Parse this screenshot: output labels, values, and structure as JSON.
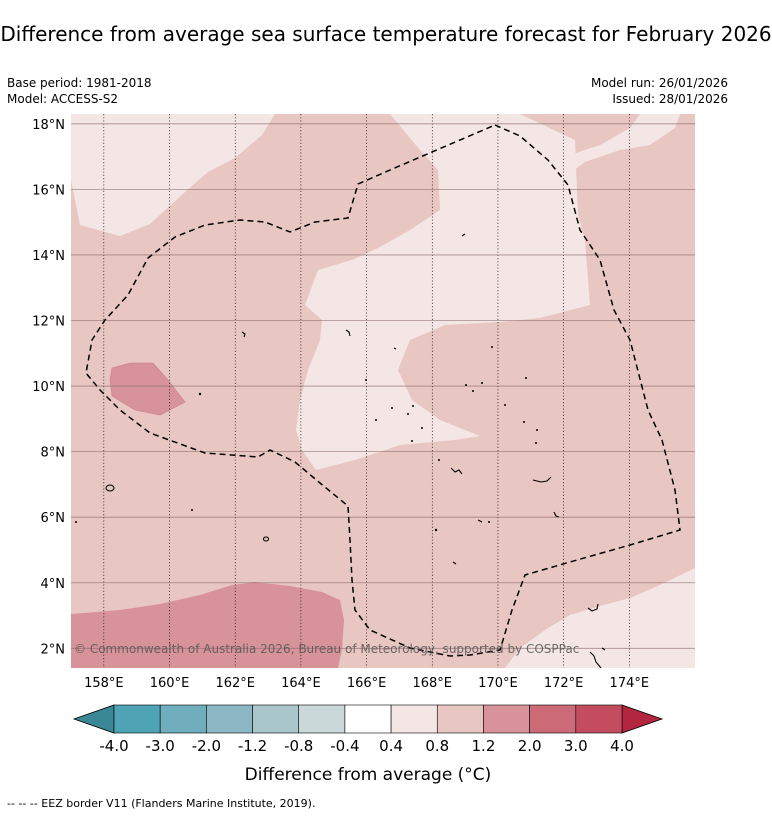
{
  "title": "Difference from average sea surface temperature forecast for February 2026",
  "meta": {
    "base_period": "Base period: 1981-2018",
    "model": "Model: ACCESS-S2",
    "model_run": "Model run: 26/01/2026",
    "issued": "Issued: 28/01/2026"
  },
  "map": {
    "lon_range": [
      157,
      176
    ],
    "lat_range": [
      1.4,
      18.3
    ],
    "lon_ticks": [
      "158°E",
      "160°E",
      "162°E",
      "164°E",
      "166°E",
      "168°E",
      "170°E",
      "172°E",
      "174°E"
    ],
    "lat_ticks": [
      "2°N",
      "4°N",
      "6°N",
      "8°N",
      "10°N",
      "12°N",
      "14°N",
      "16°N",
      "18°N"
    ],
    "copyright": "© Commonwealth of Australia 2026, Bureau of Meteorology, supported by COSPPac"
  },
  "colorbar": {
    "labels": [
      "-4.0",
      "-3.0",
      "-2.0",
      "-1.2",
      "-0.8",
      "-0.4",
      "0.4",
      "0.8",
      "1.2",
      "2.0",
      "3.0",
      "4.0"
    ],
    "colors": [
      "#3a8795",
      "#4ea3b4",
      "#70adbd",
      "#8cb8c5",
      "#a9c6cb",
      "#cbd8da",
      "#ffffff",
      "#f4e6e5",
      "#e8c6c2",
      "#d8939a",
      "#cc6b77",
      "#c34d5e",
      "#b3263f"
    ],
    "title": "Difference from average (°C)",
    "extend_low_color": "#3a8795",
    "extend_high_color": "#b3263f"
  },
  "legend_footnote": "-- -- -- EEZ border V11 (Flanders Marine Institute, 2019)."
}
